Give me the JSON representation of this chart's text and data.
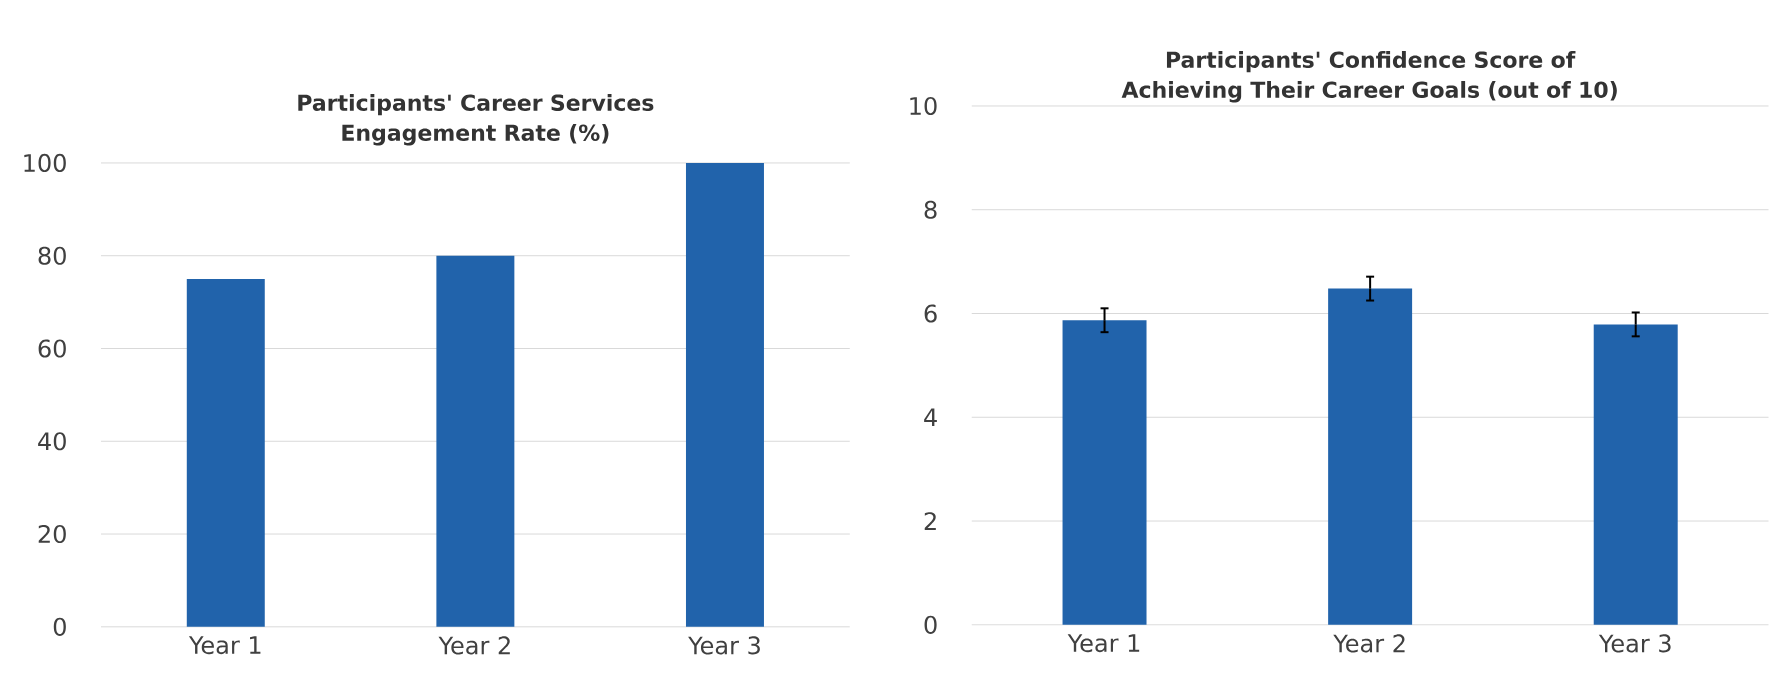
{
  "chart_data": [
    {
      "type": "bar",
      "title": "Participants' Career Services Engagement Rate (%)",
      "categories": [
        "Year 1",
        "Year 2",
        "Year 3"
      ],
      "values": [
        75,
        80,
        100
      ],
      "color": "#2163ab",
      "ylim": [
        0,
        100
      ],
      "yticks": [
        0,
        20,
        40,
        60,
        80,
        100
      ],
      "grid": "y"
    },
    {
      "type": "bar",
      "title": "Participants' Confidence Score of Achieving Their Career Goals (out of 10)",
      "categories": [
        "Year 1",
        "Year 2",
        "Year 3"
      ],
      "values": [
        5.87,
        6.48,
        5.79
      ],
      "errors": [
        0.23,
        0.23,
        0.23
      ],
      "color": "#2163ab",
      "ylim": [
        0,
        10
      ],
      "yticks": [
        0,
        2,
        4,
        6,
        8,
        10
      ],
      "grid": "y"
    }
  ]
}
